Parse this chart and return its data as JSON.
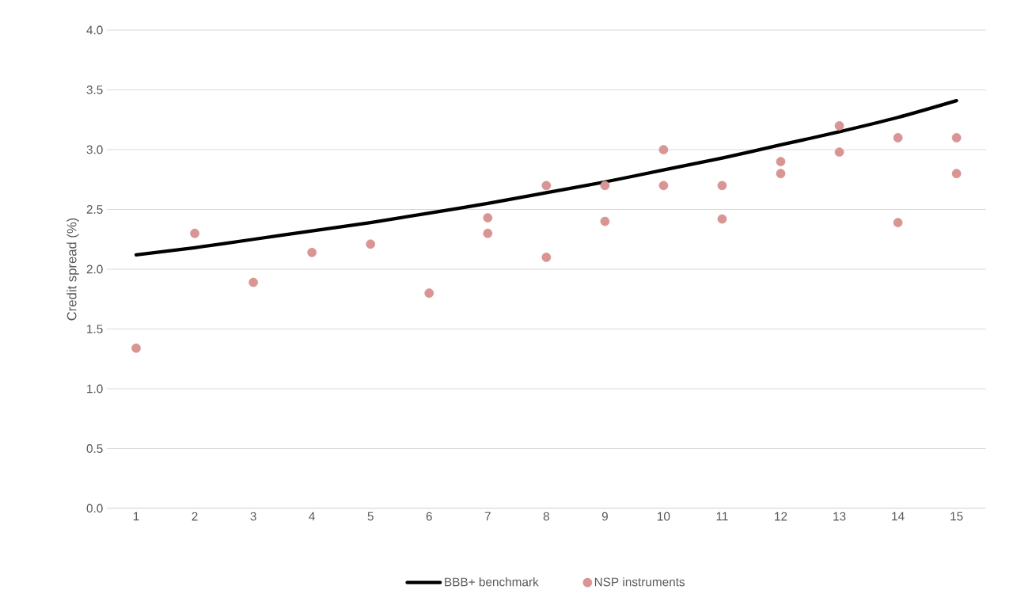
{
  "chart_data": {
    "type": "scatter",
    "ylabel": "Credit spread (%)",
    "xlim": [
      0.5,
      15.5
    ],
    "xticks": [
      1,
      2,
      3,
      4,
      5,
      6,
      7,
      8,
      9,
      10,
      11,
      12,
      13,
      14,
      15
    ],
    "ylim": [
      0,
      4
    ],
    "yticks": [
      {
        "value": 0,
        "label": "0.0"
      },
      {
        "value": 0.5,
        "label": "0.5"
      },
      {
        "value": 1,
        "label": "1.0"
      },
      {
        "value": 1.5,
        "label": "1.5"
      },
      {
        "value": 2,
        "label": "2.0"
      },
      {
        "value": 2.5,
        "label": "2.5"
      },
      {
        "value": 3,
        "label": "3.0"
      },
      {
        "value": 3.5,
        "label": "3.5"
      },
      {
        "value": 4,
        "label": "4.0"
      }
    ],
    "grid": "y",
    "legend": "bottom",
    "series": [
      {
        "name": "BBB+ benchmark",
        "type": "line",
        "color": "#000000",
        "marker": "none",
        "line_style": "solid",
        "x": [
          1,
          2,
          3,
          4,
          5,
          6,
          7,
          8,
          9,
          10,
          11,
          12,
          13,
          14,
          15
        ],
        "values": [
          2.12,
          2.18,
          2.25,
          2.32,
          2.39,
          2.47,
          2.55,
          2.64,
          2.73,
          2.83,
          2.93,
          3.04,
          3.15,
          3.27,
          3.41
        ]
      },
      {
        "name": "NSP instruments",
        "color": "#d99594",
        "marker": "circle",
        "x": [
          1,
          2,
          3,
          4,
          5,
          6,
          7,
          7,
          8,
          8,
          9,
          9,
          10,
          10,
          11,
          11,
          12,
          12,
          13,
          13,
          14,
          14,
          15,
          15
        ],
        "values": [
          1.34,
          2.3,
          1.89,
          2.14,
          2.21,
          1.8,
          2.43,
          2.3,
          2.7,
          2.1,
          2.7,
          2.4,
          3.0,
          2.7,
          2.7,
          2.42,
          2.9,
          2.8,
          3.2,
          2.98,
          3.1,
          2.39,
          3.1,
          2.8
        ]
      }
    ]
  }
}
